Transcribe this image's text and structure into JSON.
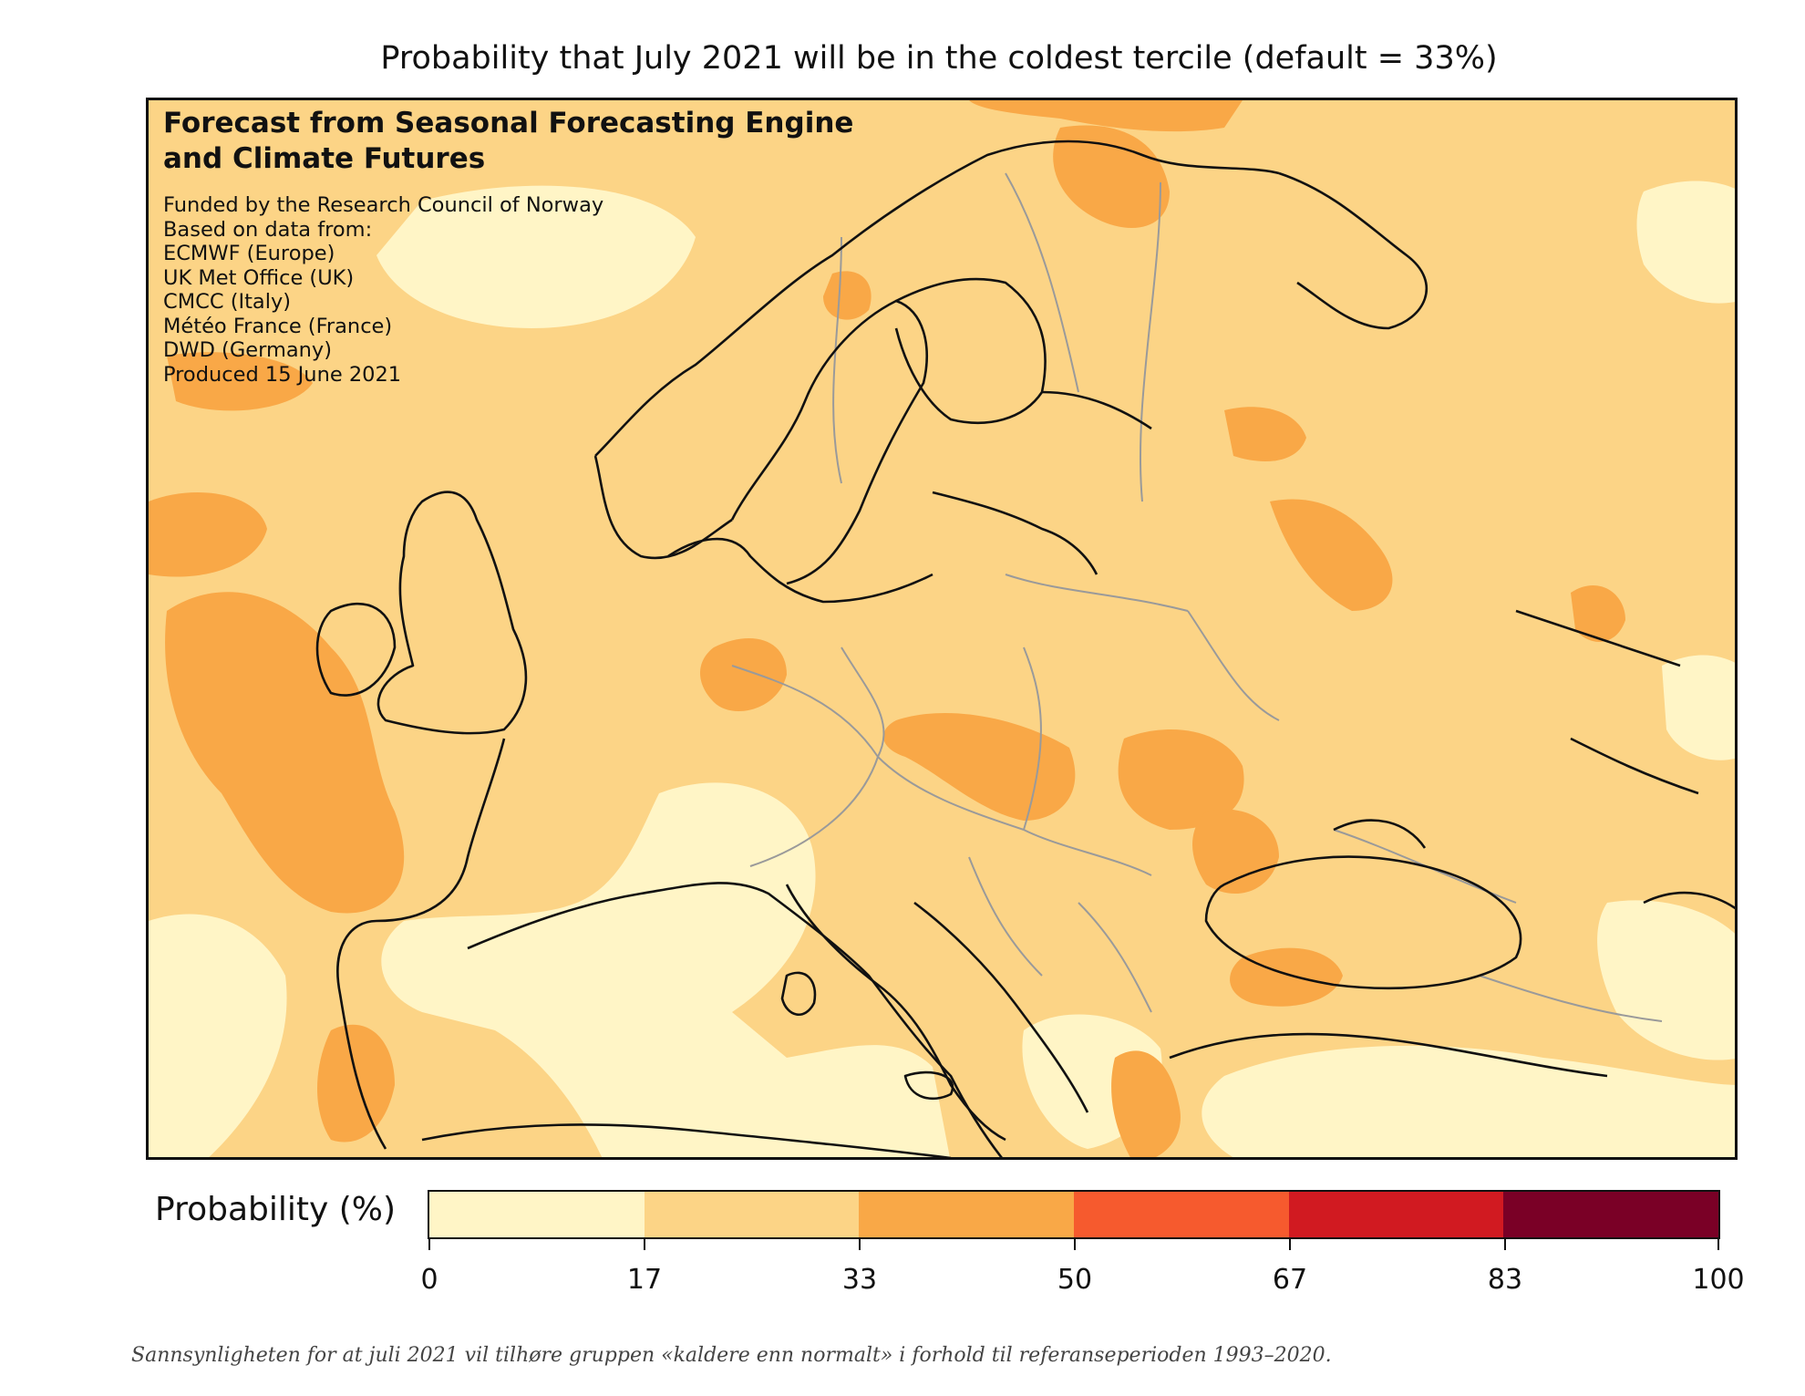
{
  "title": "Probability that July 2021 will be in the coldest tercile (default = 33%)",
  "map": {
    "heading_line1": "Forecast from Seasonal Forecasting Engine",
    "heading_line2": "and Climate Futures",
    "credits": [
      "Funded by the Research Council of Norway",
      "Based on data from:",
      "ECMWF (Europe)",
      "UK Met Office (UK)",
      "CMCC (Italy)",
      "Météo France (France)",
      "DWD (Germany)",
      "Produced 15 June 2021"
    ]
  },
  "colorbar": {
    "label": "Probability (%)",
    "ticks": [
      "0",
      "17",
      "33",
      "50",
      "67",
      "83",
      "100"
    ],
    "bins": [
      {
        "range": "0-17",
        "color": "#fff5c6"
      },
      {
        "range": "17-33",
        "color": "#fcd486"
      },
      {
        "range": "33-50",
        "color": "#f9a847"
      },
      {
        "range": "50-67",
        "color": "#f65a2e"
      },
      {
        "range": "67-83",
        "color": "#d11a21"
      },
      {
        "range": "83-100",
        "color": "#7a0026"
      }
    ]
  },
  "caption": "Sannsynligheten for at juli 2021 vil tilhøre gruppen «kaldere enn normalt» i forhold til referanseperioden 1993–2020.",
  "colors": {
    "land_outline": "#111111",
    "border_lines": "#9a9a9a",
    "low": "#fff5c6",
    "mid": "#fcd486",
    "high": "#f9a847"
  }
}
